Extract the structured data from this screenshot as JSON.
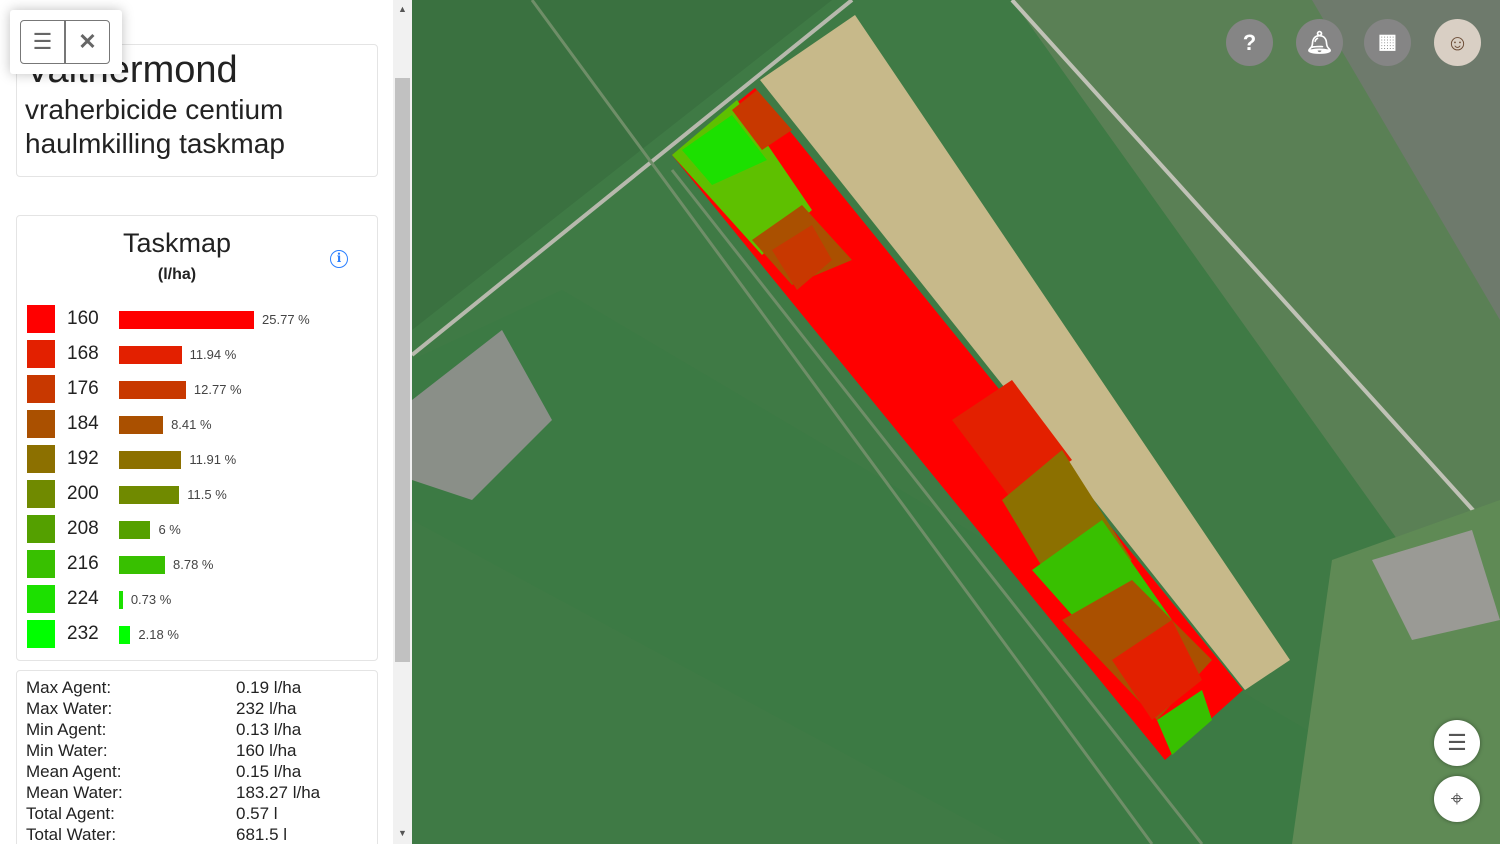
{
  "panel": {
    "title": "Valthermond",
    "subtitle": "vraherbicide centium haulmkilling taskmap",
    "toolbox": {
      "menu_icon": "hamburger-icon",
      "close_icon": "close-icon"
    }
  },
  "legend": {
    "title": "Taskmap",
    "unit": "(l/ha)",
    "info_icon": "info-icon",
    "items": [
      {
        "value": "160",
        "percent": 25.77,
        "label": "25.77 %",
        "color": "#ff0000"
      },
      {
        "value": "168",
        "percent": 11.94,
        "label": "11.94 %",
        "color": "#e32000"
      },
      {
        "value": "176",
        "percent": 12.77,
        "label": "12.77 %",
        "color": "#c83800"
      },
      {
        "value": "184",
        "percent": 8.41,
        "label": "8.41 %",
        "color": "#aa5000"
      },
      {
        "value": "192",
        "percent": 11.91,
        "label": "11.91 %",
        "color": "#8c7000"
      },
      {
        "value": "200",
        "percent": 11.5,
        "label": "11.5 %",
        "color": "#708a00"
      },
      {
        "value": "208",
        "percent": 6,
        "label": "6 %",
        "color": "#54a000"
      },
      {
        "value": "216",
        "percent": 8.78,
        "label": "8.78 %",
        "color": "#38c000"
      },
      {
        "value": "224",
        "percent": 0.73,
        "label": "0.73 %",
        "color": "#1ce000"
      },
      {
        "value": "232",
        "percent": 2.18,
        "label": "2.18 %",
        "color": "#00ff00"
      }
    ]
  },
  "stats": [
    {
      "label": "Max Agent:",
      "value": "0.19 l/ha"
    },
    {
      "label": "Max Water:",
      "value": "232 l/ha"
    },
    {
      "label": "Min Agent:",
      "value": "0.13 l/ha"
    },
    {
      "label": "Min Water:",
      "value": "160 l/ha"
    },
    {
      "label": "Mean Agent:",
      "value": "0.15 l/ha"
    },
    {
      "label": "Mean Water:",
      "value": "183.27 l/ha"
    },
    {
      "label": "Total Agent:",
      "value": "0.57 l"
    },
    {
      "label": "Total Water:",
      "value": "681.5 l"
    }
  ],
  "map": {
    "top_buttons": [
      "help-icon",
      "bell-icon",
      "apps-grid-icon",
      "user-avatar"
    ],
    "bottom_buttons": [
      "layers-icon",
      "locate-icon"
    ]
  }
}
